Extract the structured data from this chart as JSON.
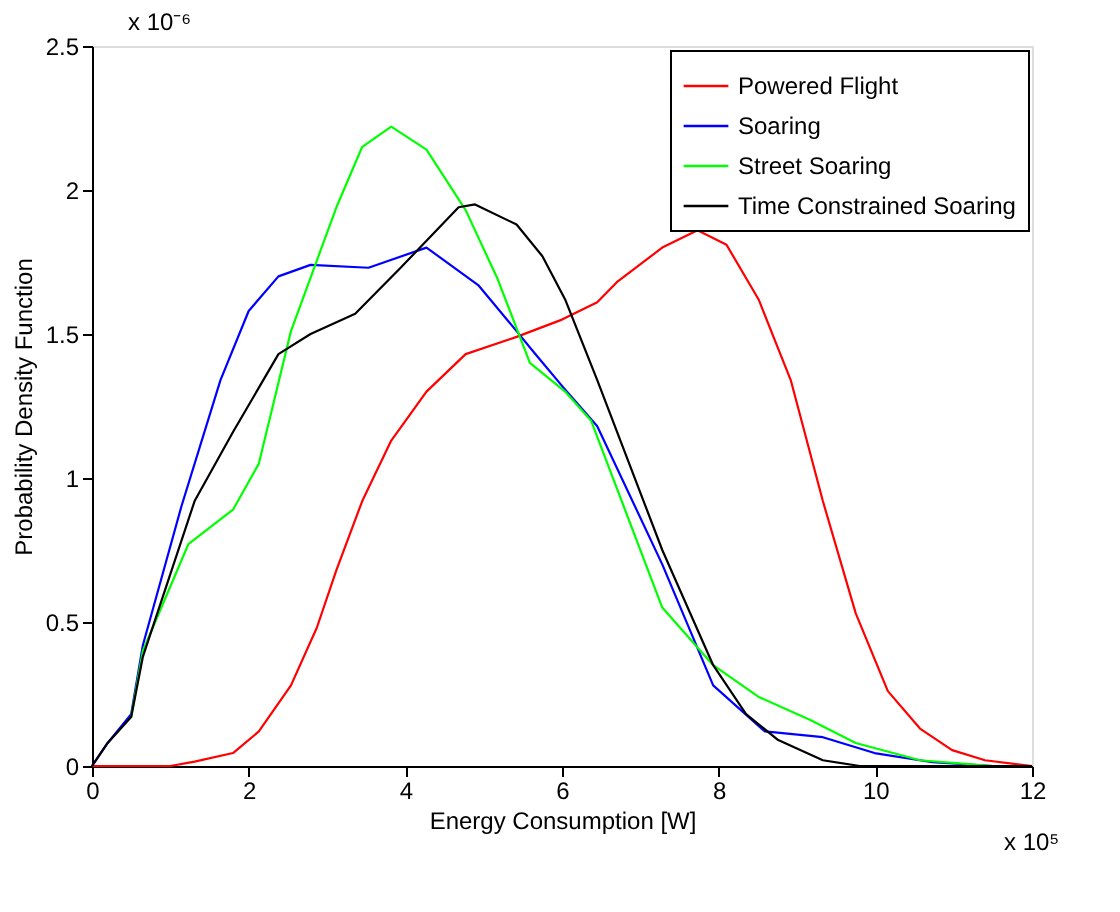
{
  "chart_data": {
    "type": "line",
    "xlabel": "Energy Consumption [W]",
    "ylabel": "Probability Density Function",
    "xlim": [
      0,
      12
    ],
    "ylim": [
      0,
      2.5
    ],
    "xticks": [
      0,
      2,
      4,
      6,
      8,
      10,
      12
    ],
    "yticks": [
      0,
      0.5,
      1,
      1.5,
      2,
      2.5
    ],
    "grid": false,
    "legend": "top right",
    "marker": "none",
    "line_style": "solid",
    "annotations": [
      "x 10⁻⁶",
      "x 10⁵"
    ],
    "series": [
      {
        "name": "Powered Flight",
        "color": "#ff0000",
        "x": [
          0,
          0.5,
          1.0,
          1.31,
          1.8,
          2.13,
          2.54,
          2.87,
          3.12,
          3.45,
          3.82,
          4.27,
          4.77,
          5.42,
          6.0,
          6.45,
          6.7,
          7.28,
          7.73,
          8.1,
          8.51,
          8.92,
          9.33,
          9.75,
          10.16,
          10.57,
          10.98,
          11.4,
          12
        ],
        "values": [
          0,
          0,
          0,
          0.015,
          0.045,
          0.12,
          0.28,
          0.48,
          0.68,
          0.92,
          1.13,
          1.3,
          1.43,
          1.49,
          1.55,
          1.61,
          1.68,
          1.8,
          1.86,
          1.81,
          1.62,
          1.34,
          0.92,
          0.53,
          0.26,
          0.13,
          0.055,
          0.02,
          0
        ]
      },
      {
        "name": "Soaring",
        "color": "#0000ff",
        "x": [
          0,
          0.2,
          0.5,
          0.65,
          1.14,
          1.64,
          2.0,
          2.38,
          2.79,
          3.53,
          4.27,
          4.93,
          5.42,
          5.63,
          6.0,
          6.45,
          7.28,
          7.93,
          8.59,
          9.33,
          9.99,
          10.73,
          11.5,
          12
        ],
        "values": [
          0,
          0.08,
          0.18,
          0.42,
          0.9,
          1.34,
          1.58,
          1.7,
          1.74,
          1.73,
          1.8,
          1.67,
          1.51,
          1.44,
          1.32,
          1.18,
          0.7,
          0.28,
          0.12,
          0.1,
          0.045,
          0.013,
          0,
          0
        ]
      },
      {
        "name": "Street Soaring",
        "color": "#00ff00",
        "x": [
          0.5,
          0.65,
          1.23,
          1.8,
          2.13,
          2.54,
          3.12,
          3.45,
          3.82,
          4.27,
          4.77,
          5.18,
          5.59,
          6.04,
          6.37,
          7.28,
          7.93,
          8.51,
          9.17,
          9.75,
          10.57,
          11.5,
          12
        ],
        "values": [
          0.17,
          0.4,
          0.77,
          0.89,
          1.05,
          1.51,
          1.94,
          2.15,
          2.22,
          2.14,
          1.93,
          1.69,
          1.4,
          1.3,
          1.2,
          0.55,
          0.35,
          0.24,
          0.16,
          0.08,
          0.02,
          0,
          0
        ]
      },
      {
        "name": "Time Constrained Soaring",
        "color": "#000000",
        "x": [
          0,
          0.2,
          0.5,
          0.65,
          1.31,
          1.8,
          2.38,
          2.79,
          3.36,
          3.94,
          4.68,
          4.89,
          5.42,
          5.75,
          6.04,
          6.45,
          7.28,
          7.93,
          8.35,
          8.76,
          9.33,
          9.8,
          12
        ],
        "values": [
          0,
          0.08,
          0.17,
          0.38,
          0.92,
          1.16,
          1.43,
          1.5,
          1.57,
          1.73,
          1.94,
          1.95,
          1.88,
          1.77,
          1.62,
          1.34,
          0.75,
          0.35,
          0.18,
          0.09,
          0.02,
          0,
          0
        ]
      }
    ]
  }
}
